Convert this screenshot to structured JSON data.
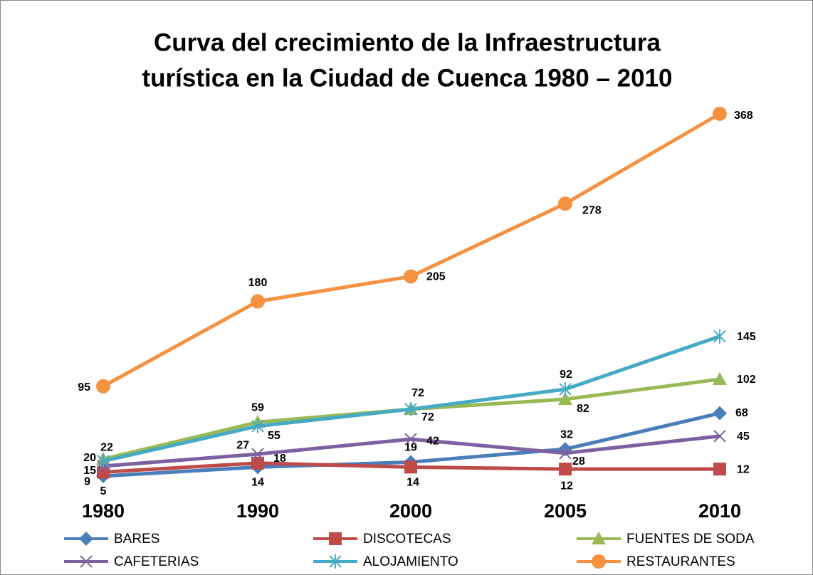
{
  "chart_data": {
    "type": "line",
    "title": [
      "Curva del crecimiento de la Infraestructura",
      "turística en la Ciudad de Cuenca 1980 – 2010"
    ],
    "categories": [
      "1980",
      "1990",
      "2000",
      "2005",
      "2010"
    ],
    "ylim": [
      0,
      400
    ],
    "series": [
      {
        "name": "BARES",
        "color": "#4a7ebb",
        "marker": "diamond",
        "values": [
          5,
          14,
          19,
          32,
          68
        ]
      },
      {
        "name": "DISCOTECAS",
        "color": "#be4b48",
        "marker": "square",
        "values": [
          9,
          18,
          14,
          12,
          12
        ]
      },
      {
        "name": "FUENTES DE SODA",
        "color": "#98b954",
        "marker": "triangle",
        "values": [
          22,
          59,
          72,
          82,
          102
        ]
      },
      {
        "name": "CAFETERIAS",
        "color": "#7d60a0",
        "marker": "x",
        "values": [
          15,
          27,
          42,
          28,
          45
        ]
      },
      {
        "name": "ALOJAMIENTO",
        "color": "#46aac5",
        "marker": "star",
        "values": [
          20,
          55,
          72,
          92,
          145
        ]
      },
      {
        "name": "RESTAURANTES",
        "color": "#f59240",
        "marker": "circle",
        "values": [
          95,
          180,
          205,
          278,
          368
        ]
      }
    ]
  }
}
